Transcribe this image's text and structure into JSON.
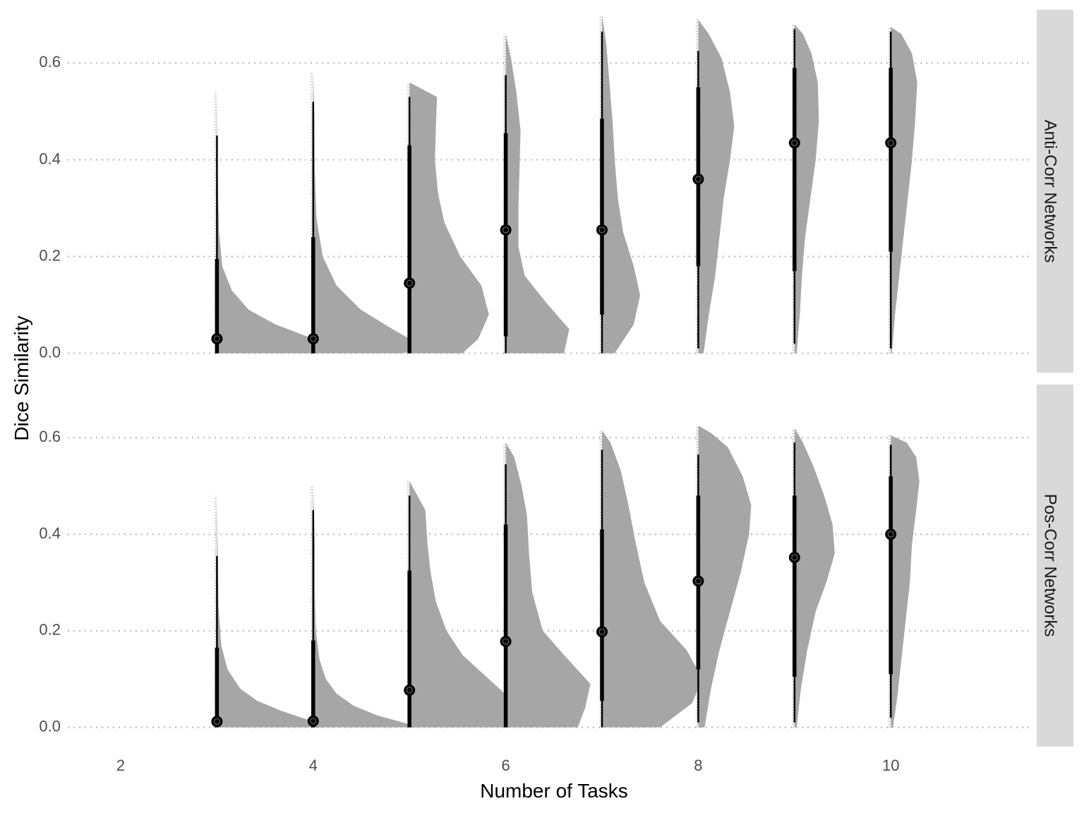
{
  "chart_data": {
    "type": "raincloud",
    "xlabel": "Number of Tasks",
    "ylabel": "Dice Similarity",
    "x_ticks": [
      2,
      4,
      6,
      8,
      10
    ],
    "x_tick_labels": [
      "2",
      "4",
      "6",
      "8",
      "10"
    ],
    "xlim": [
      1.45,
      11.45
    ],
    "y_ticks": [
      0.0,
      0.2,
      0.4,
      0.6
    ],
    "y_tick_labels": [
      "0.0",
      "0.2",
      "0.4",
      "0.6"
    ],
    "ylim": [
      -0.04,
      0.71
    ],
    "colors": {
      "density": "#a6a6a6",
      "summary": "#000000",
      "grid": "#bdbdbd",
      "strip": "#d9d9d9"
    },
    "facets": [
      {
        "label": "Anti-Corr Networks",
        "groups": [
          {
            "x": 3,
            "median": 0.03,
            "q1": 0.0,
            "q3": 0.195,
            "min": 0.0,
            "max": 0.45,
            "ymax": 0.54,
            "density": [
              [
                0.0,
                0.95
              ],
              [
                0.01,
                1.0
              ],
              [
                0.02,
                0.95
              ],
              [
                0.035,
                0.85
              ],
              [
                0.06,
                0.55
              ],
              [
                0.09,
                0.3
              ],
              [
                0.13,
                0.14
              ],
              [
                0.18,
                0.05
              ],
              [
                0.25,
                0.02
              ],
              [
                0.35,
                0.008
              ],
              [
                0.45,
                0.004
              ],
              [
                0.54,
                0.0
              ]
            ]
          },
          {
            "x": 4,
            "median": 0.03,
            "q1": 0.0,
            "q3": 0.24,
            "min": 0.0,
            "max": 0.52,
            "ymax": 0.58,
            "density": [
              [
                0.0,
                0.85
              ],
              [
                0.01,
                1.0
              ],
              [
                0.025,
                0.95
              ],
              [
                0.05,
                0.75
              ],
              [
                0.09,
                0.45
              ],
              [
                0.14,
                0.22
              ],
              [
                0.2,
                0.09
              ],
              [
                0.28,
                0.03
              ],
              [
                0.38,
                0.015
              ],
              [
                0.5,
                0.01
              ],
              [
                0.58,
                0.0
              ]
            ]
          },
          {
            "x": 5,
            "median": 0.145,
            "q1": 0.0,
            "q3": 0.43,
            "min": 0.0,
            "max": 0.53,
            "ymax": 0.56,
            "density": [
              [
                0.0,
                0.5
              ],
              [
                0.03,
                0.65
              ],
              [
                0.08,
                0.75
              ],
              [
                0.14,
                0.68
              ],
              [
                0.2,
                0.48
              ],
              [
                0.27,
                0.33
              ],
              [
                0.33,
                0.27
              ],
              [
                0.4,
                0.24
              ],
              [
                0.47,
                0.25
              ],
              [
                0.53,
                0.26
              ],
              [
                0.56,
                0.0
              ]
            ]
          },
          {
            "x": 6,
            "median": 0.255,
            "q1": 0.035,
            "q3": 0.455,
            "min": 0.0,
            "max": 0.575,
            "ymax": 0.66,
            "density": [
              [
                0.0,
                0.55
              ],
              [
                0.05,
                0.6
              ],
              [
                0.1,
                0.4
              ],
              [
                0.16,
                0.18
              ],
              [
                0.22,
                0.12
              ],
              [
                0.3,
                0.12
              ],
              [
                0.38,
                0.13
              ],
              [
                0.46,
                0.14
              ],
              [
                0.54,
                0.1
              ],
              [
                0.61,
                0.05
              ],
              [
                0.66,
                0.0
              ]
            ]
          },
          {
            "x": 7,
            "median": 0.255,
            "q1": 0.08,
            "q3": 0.485,
            "min": 0.0,
            "max": 0.665,
            "ymax": 0.7,
            "density": [
              [
                0.0,
                0.12
              ],
              [
                0.06,
                0.3
              ],
              [
                0.12,
                0.36
              ],
              [
                0.18,
                0.3
              ],
              [
                0.25,
                0.2
              ],
              [
                0.32,
                0.15
              ],
              [
                0.4,
                0.12
              ],
              [
                0.48,
                0.1
              ],
              [
                0.56,
                0.07
              ],
              [
                0.64,
                0.04
              ],
              [
                0.7,
                0.0
              ]
            ]
          },
          {
            "x": 8,
            "median": 0.36,
            "q1": 0.18,
            "q3": 0.55,
            "min": 0.01,
            "max": 0.625,
            "ymax": 0.69,
            "density": [
              [
                0.0,
                0.05
              ],
              [
                0.08,
                0.1
              ],
              [
                0.16,
                0.16
              ],
              [
                0.24,
                0.2
              ],
              [
                0.32,
                0.24
              ],
              [
                0.4,
                0.3
              ],
              [
                0.47,
                0.34
              ],
              [
                0.54,
                0.3
              ],
              [
                0.61,
                0.22
              ],
              [
                0.66,
                0.1
              ],
              [
                0.69,
                0.0
              ]
            ]
          },
          {
            "x": 9,
            "median": 0.435,
            "q1": 0.17,
            "q3": 0.59,
            "min": 0.02,
            "max": 0.67,
            "ymax": 0.68,
            "density": [
              [
                0.0,
                0.02
              ],
              [
                0.08,
                0.05
              ],
              [
                0.16,
                0.07
              ],
              [
                0.24,
                0.1
              ],
              [
                0.32,
                0.15
              ],
              [
                0.4,
                0.2
              ],
              [
                0.48,
                0.23
              ],
              [
                0.56,
                0.22
              ],
              [
                0.62,
                0.16
              ],
              [
                0.66,
                0.08
              ],
              [
                0.68,
                0.0
              ]
            ]
          },
          {
            "x": 10,
            "median": 0.435,
            "q1": 0.21,
            "q3": 0.59,
            "min": 0.01,
            "max": 0.665,
            "ymax": 0.675,
            "density": [
              [
                0.0,
                0.01
              ],
              [
                0.08,
                0.04
              ],
              [
                0.16,
                0.08
              ],
              [
                0.24,
                0.12
              ],
              [
                0.32,
                0.16
              ],
              [
                0.4,
                0.2
              ],
              [
                0.48,
                0.23
              ],
              [
                0.56,
                0.25
              ],
              [
                0.62,
                0.2
              ],
              [
                0.66,
                0.1
              ],
              [
                0.675,
                0.0
              ]
            ]
          }
        ]
      },
      {
        "label": "Pos-Corr Networks",
        "groups": [
          {
            "x": 3,
            "median": 0.012,
            "q1": 0.0,
            "q3": 0.165,
            "min": 0.0,
            "max": 0.355,
            "ymax": 0.48,
            "density": [
              [
                0.0,
                1.0
              ],
              [
                0.01,
                0.95
              ],
              [
                0.02,
                0.8
              ],
              [
                0.035,
                0.6
              ],
              [
                0.055,
                0.38
              ],
              [
                0.08,
                0.22
              ],
              [
                0.12,
                0.1
              ],
              [
                0.17,
                0.04
              ],
              [
                0.25,
                0.015
              ],
              [
                0.35,
                0.008
              ],
              [
                0.48,
                0.0
              ]
            ]
          },
          {
            "x": 4,
            "median": 0.013,
            "q1": 0.0,
            "q3": 0.18,
            "min": 0.0,
            "max": 0.45,
            "ymax": 0.5,
            "density": [
              [
                0.0,
                1.0
              ],
              [
                0.01,
                0.85
              ],
              [
                0.025,
                0.6
              ],
              [
                0.045,
                0.38
              ],
              [
                0.07,
                0.22
              ],
              [
                0.1,
                0.12
              ],
              [
                0.14,
                0.06
              ],
              [
                0.2,
                0.025
              ],
              [
                0.28,
                0.015
              ],
              [
                0.38,
                0.015
              ],
              [
                0.5,
                0.0
              ]
            ]
          },
          {
            "x": 5,
            "median": 0.077,
            "q1": 0.0,
            "q3": 0.325,
            "min": 0.0,
            "max": 0.48,
            "ymax": 0.51,
            "density": [
              [
                0.0,
                0.95
              ],
              [
                0.03,
                1.0
              ],
              [
                0.07,
                0.9
              ],
              [
                0.11,
                0.7
              ],
              [
                0.15,
                0.5
              ],
              [
                0.2,
                0.35
              ],
              [
                0.26,
                0.25
              ],
              [
                0.32,
                0.2
              ],
              [
                0.38,
                0.17
              ],
              [
                0.45,
                0.15
              ],
              [
                0.51,
                0.0
              ]
            ]
          },
          {
            "x": 6,
            "median": 0.178,
            "q1": 0.0,
            "q3": 0.42,
            "min": 0.0,
            "max": 0.545,
            "ymax": 0.59,
            "density": [
              [
                0.0,
                0.68
              ],
              [
                0.04,
                0.75
              ],
              [
                0.09,
                0.8
              ],
              [
                0.15,
                0.55
              ],
              [
                0.2,
                0.35
              ],
              [
                0.28,
                0.25
              ],
              [
                0.36,
                0.22
              ],
              [
                0.44,
                0.2
              ],
              [
                0.5,
                0.15
              ],
              [
                0.56,
                0.08
              ],
              [
                0.59,
                0.0
              ]
            ]
          },
          {
            "x": 7,
            "median": 0.198,
            "q1": 0.055,
            "q3": 0.41,
            "min": 0.0,
            "max": 0.575,
            "ymax": 0.615,
            "density": [
              [
                0.0,
                0.55
              ],
              [
                0.05,
                0.85
              ],
              [
                0.1,
                0.95
              ],
              [
                0.16,
                0.8
              ],
              [
                0.22,
                0.55
              ],
              [
                0.3,
                0.4
              ],
              [
                0.38,
                0.32
              ],
              [
                0.46,
                0.25
              ],
              [
                0.53,
                0.18
              ],
              [
                0.59,
                0.08
              ],
              [
                0.615,
                0.0
              ]
            ]
          },
          {
            "x": 8,
            "median": 0.303,
            "q1": 0.12,
            "q3": 0.48,
            "min": 0.01,
            "max": 0.565,
            "ymax": 0.625,
            "density": [
              [
                0.0,
                0.06
              ],
              [
                0.08,
                0.12
              ],
              [
                0.16,
                0.2
              ],
              [
                0.24,
                0.3
              ],
              [
                0.32,
                0.4
              ],
              [
                0.4,
                0.48
              ],
              [
                0.46,
                0.5
              ],
              [
                0.52,
                0.42
              ],
              [
                0.58,
                0.28
              ],
              [
                0.61,
                0.12
              ],
              [
                0.625,
                0.0
              ]
            ]
          },
          {
            "x": 9,
            "median": 0.352,
            "q1": 0.105,
            "q3": 0.48,
            "min": 0.01,
            "max": 0.59,
            "ymax": 0.62,
            "density": [
              [
                0.0,
                0.02
              ],
              [
                0.08,
                0.06
              ],
              [
                0.16,
                0.12
              ],
              [
                0.24,
                0.2
              ],
              [
                0.3,
                0.3
              ],
              [
                0.36,
                0.38
              ],
              [
                0.42,
                0.36
              ],
              [
                0.48,
                0.28
              ],
              [
                0.54,
                0.18
              ],
              [
                0.59,
                0.08
              ],
              [
                0.62,
                0.0
              ]
            ]
          },
          {
            "x": 10,
            "median": 0.4,
            "q1": 0.11,
            "q3": 0.52,
            "min": 0.02,
            "max": 0.585,
            "ymax": 0.605,
            "density": [
              [
                0.0,
                0.02
              ],
              [
                0.06,
                0.06
              ],
              [
                0.14,
                0.1
              ],
              [
                0.22,
                0.14
              ],
              [
                0.3,
                0.18
              ],
              [
                0.38,
                0.2
              ],
              [
                0.45,
                0.24
              ],
              [
                0.51,
                0.27
              ],
              [
                0.56,
                0.24
              ],
              [
                0.59,
                0.15
              ],
              [
                0.605,
                0.0
              ]
            ]
          }
        ]
      }
    ]
  }
}
